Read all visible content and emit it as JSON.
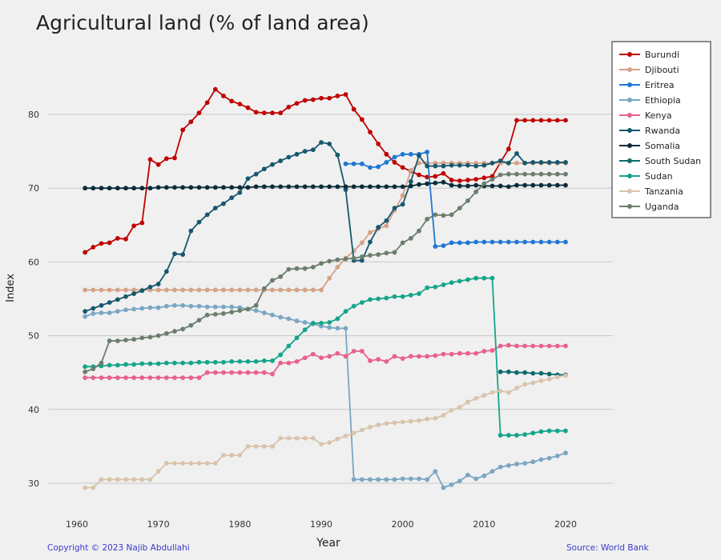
{
  "title": "Agricultural land (% of land area)",
  "footer": {
    "copyright": "Copyright © 2023 Najib Abdullahi",
    "source": "Source: World Bank"
  },
  "chart_data": {
    "type": "line",
    "title": "Agricultural land (% of land area)",
    "xlabel": "Year",
    "ylabel": "Index",
    "xlim": [
      1961,
      2020
    ],
    "ylim": [
      29,
      86
    ],
    "xticks": [
      1960,
      1970,
      1980,
      1990,
      2000,
      2010,
      2020
    ],
    "yticks": [
      30,
      40,
      50,
      60,
      70,
      80
    ],
    "grid": "horizontal",
    "legend_position": "top-right",
    "series": [
      {
        "name": "Burundi",
        "color": "#c00000",
        "x_start": 1961,
        "values": [
          61.3,
          62.0,
          62.5,
          62.6,
          63.2,
          63.1,
          64.9,
          65.3,
          73.9,
          73.2,
          74.0,
          74.1,
          77.9,
          79.0,
          80.2,
          81.6,
          83.4,
          82.5,
          81.8,
          81.4,
          80.9,
          80.3,
          80.2,
          80.2,
          80.2,
          81.0,
          81.5,
          81.9,
          82.0,
          82.2,
          82.2,
          82.5,
          82.7,
          80.7,
          79.3,
          77.6,
          76.0,
          74.6,
          73.5,
          72.8,
          72.3,
          71.8,
          71.5,
          71.6,
          72.0,
          71.1,
          71.0,
          71.1,
          71.2,
          71.4,
          71.6,
          73.5,
          75.3,
          79.2,
          79.2,
          79.2,
          79.2,
          79.2,
          79.2,
          79.2
        ]
      },
      {
        "name": "Djibouti",
        "color": "#d4a287",
        "x_start": 1961,
        "values": [
          56.2,
          56.2,
          56.2,
          56.2,
          56.2,
          56.2,
          56.2,
          56.2,
          56.2,
          56.2,
          56.2,
          56.2,
          56.2,
          56.2,
          56.2,
          56.2,
          56.2,
          56.2,
          56.2,
          56.2,
          56.2,
          56.2,
          56.2,
          56.2,
          56.2,
          56.2,
          56.2,
          56.2,
          56.2,
          56.2,
          57.8,
          59.3,
          60.5,
          61.5,
          62.6,
          64.0,
          64.5,
          64.9,
          67.0,
          69.0,
          72.4,
          73.4,
          73.4,
          73.4,
          73.4,
          73.4,
          73.4,
          73.4,
          73.4,
          73.4,
          73.4,
          73.4,
          73.4,
          73.4,
          73.4,
          73.4,
          73.4,
          73.4,
          73.4,
          73.4
        ]
      },
      {
        "name": "Eritrea",
        "color": "#1f77d4",
        "x_start": 1993,
        "values": [
          73.3,
          73.3,
          73.3,
          72.8,
          72.9,
          73.5,
          74.2,
          74.6,
          74.6,
          74.6,
          74.9,
          62.1,
          62.2,
          62.6,
          62.6,
          62.6,
          62.7,
          62.7,
          62.7,
          62.7,
          62.7,
          62.7,
          62.7,
          62.7,
          62.7,
          62.7,
          62.7,
          62.7
        ]
      },
      {
        "name": "Ethiopia",
        "color": "#7aa6c2",
        "x_start": 1961,
        "values": [
          52.6,
          53.0,
          53.1,
          53.1,
          53.3,
          53.5,
          53.6,
          53.7,
          53.8,
          53.8,
          54.0,
          54.1,
          54.1,
          54.0,
          54.0,
          53.9,
          53.9,
          53.9,
          53.9,
          53.8,
          53.6,
          53.4,
          53.1,
          52.8,
          52.5,
          52.3,
          52.0,
          51.8,
          51.6,
          51.3,
          51.1,
          51.0,
          51.0,
          30.5,
          30.5,
          30.5,
          30.5,
          30.5,
          30.5,
          30.6,
          30.6,
          30.6,
          30.5,
          31.6,
          29.4,
          29.8,
          30.3,
          31.1,
          30.6,
          31.0,
          31.6,
          32.2,
          32.4,
          32.6,
          32.7,
          32.9,
          33.2,
          33.4,
          33.7,
          34.1
        ]
      },
      {
        "name": "Kenya",
        "color": "#e8618c",
        "x_start": 1961,
        "values": [
          44.3,
          44.3,
          44.3,
          44.3,
          44.3,
          44.3,
          44.3,
          44.3,
          44.3,
          44.3,
          44.3,
          44.3,
          44.3,
          44.3,
          44.3,
          45.0,
          45.0,
          45.0,
          45.0,
          45.0,
          45.0,
          45.0,
          45.0,
          44.8,
          46.3,
          46.3,
          46.5,
          47.0,
          47.5,
          47.0,
          47.2,
          47.6,
          47.2,
          47.9,
          47.9,
          46.6,
          46.8,
          46.5,
          47.2,
          46.9,
          47.2,
          47.2,
          47.2,
          47.3,
          47.5,
          47.5,
          47.6,
          47.6,
          47.6,
          47.9,
          48.0,
          48.6,
          48.7,
          48.6,
          48.6,
          48.6,
          48.6,
          48.6,
          48.6,
          48.6
        ]
      },
      {
        "name": "Rwanda",
        "color": "#16586e",
        "x_start": 1961,
        "values": [
          53.3,
          53.7,
          54.1,
          54.5,
          54.9,
          55.3,
          55.7,
          56.1,
          56.6,
          57.0,
          58.7,
          61.1,
          61.0,
          64.2,
          65.4,
          66.4,
          67.3,
          67.9,
          68.7,
          69.4,
          71.3,
          71.9,
          72.6,
          73.2,
          73.7,
          74.2,
          74.6,
          75.0,
          75.2,
          76.2,
          76.0,
          74.5,
          69.8,
          60.2,
          60.2,
          62.7,
          64.7,
          65.6,
          67.3,
          67.8,
          70.9,
          74.4,
          73.0,
          73.0,
          73.0,
          73.1,
          73.1,
          73.1,
          73.0,
          73.1,
          73.4,
          73.7,
          73.4,
          74.7,
          73.4,
          73.5,
          73.5,
          73.5,
          73.5,
          73.5
        ]
      },
      {
        "name": "Somalia",
        "color": "#0b2b3a",
        "x_start": 1961,
        "values": [
          70.0,
          70.0,
          70.0,
          70.0,
          70.0,
          70.0,
          70.0,
          70.0,
          70.0,
          70.1,
          70.1,
          70.1,
          70.1,
          70.1,
          70.1,
          70.1,
          70.1,
          70.1,
          70.1,
          70.1,
          70.1,
          70.2,
          70.2,
          70.2,
          70.2,
          70.2,
          70.2,
          70.2,
          70.2,
          70.2,
          70.2,
          70.2,
          70.2,
          70.2,
          70.2,
          70.2,
          70.2,
          70.2,
          70.2,
          70.2,
          70.3,
          70.5,
          70.6,
          70.7,
          70.8,
          70.4,
          70.3,
          70.3,
          70.4,
          70.3,
          70.3,
          70.3,
          70.2,
          70.4,
          70.4,
          70.4,
          70.4,
          70.4,
          70.4,
          70.4
        ]
      },
      {
        "name": "South Sudan",
        "color": "#0e6b6b",
        "x_start": 2012,
        "values": [
          45.1,
          45.1,
          45.0,
          45.0,
          44.9,
          44.9,
          44.8,
          44.7,
          44.7
        ]
      },
      {
        "name": "Sudan",
        "color": "#14a589",
        "x_start": 1961,
        "values": [
          45.8,
          45.8,
          45.9,
          46.0,
          46.0,
          46.1,
          46.1,
          46.2,
          46.2,
          46.2,
          46.3,
          46.3,
          46.3,
          46.3,
          46.4,
          46.4,
          46.4,
          46.4,
          46.5,
          46.5,
          46.5,
          46.5,
          46.6,
          46.6,
          47.4,
          48.6,
          49.7,
          50.8,
          51.7,
          51.7,
          51.8,
          52.3,
          53.3,
          54.0,
          54.5,
          54.9,
          55.0,
          55.1,
          55.3,
          55.3,
          55.5,
          55.7,
          56.5,
          56.6,
          56.9,
          57.2,
          57.4,
          57.6,
          57.8,
          57.8,
          57.8,
          36.5,
          36.5,
          36.5,
          36.6,
          36.8,
          37.0,
          37.1,
          37.1,
          37.1
        ]
      },
      {
        "name": "Tanzania",
        "color": "#d9c4ac",
        "x_start": 1961,
        "values": [
          29.4,
          29.4,
          30.5,
          30.5,
          30.5,
          30.5,
          30.5,
          30.5,
          30.5,
          31.6,
          32.7,
          32.7,
          32.7,
          32.7,
          32.7,
          32.7,
          32.7,
          33.8,
          33.8,
          33.8,
          35.0,
          35.0,
          35.0,
          35.0,
          36.1,
          36.1,
          36.1,
          36.1,
          36.1,
          35.3,
          35.5,
          36.0,
          36.4,
          36.8,
          37.2,
          37.6,
          37.9,
          38.1,
          38.2,
          38.3,
          38.4,
          38.5,
          38.7,
          38.8,
          39.2,
          39.9,
          40.3,
          41.0,
          41.5,
          41.9,
          42.3,
          42.5,
          42.3,
          42.9,
          43.4,
          43.6,
          43.9,
          44.1,
          44.4,
          44.6
        ]
      },
      {
        "name": "Uganda",
        "color": "#6b7e6e",
        "x_start": 1961,
        "values": [
          45.1,
          45.5,
          46.3,
          49.3,
          49.3,
          49.4,
          49.5,
          49.7,
          49.8,
          50.0,
          50.3,
          50.6,
          50.9,
          51.4,
          52.1,
          52.8,
          52.9,
          53.0,
          53.2,
          53.4,
          53.6,
          54.1,
          56.4,
          57.5,
          58.0,
          59.0,
          59.1,
          59.1,
          59.3,
          59.8,
          60.1,
          60.3,
          60.4,
          60.5,
          60.7,
          60.9,
          61.0,
          61.2,
          61.3,
          62.6,
          63.2,
          64.2,
          65.8,
          66.4,
          66.3,
          66.4,
          67.3,
          68.3,
          69.5,
          70.6,
          71.2,
          71.8,
          71.9,
          71.9,
          71.9,
          71.9,
          71.9,
          71.9,
          71.9,
          71.9
        ]
      }
    ]
  }
}
